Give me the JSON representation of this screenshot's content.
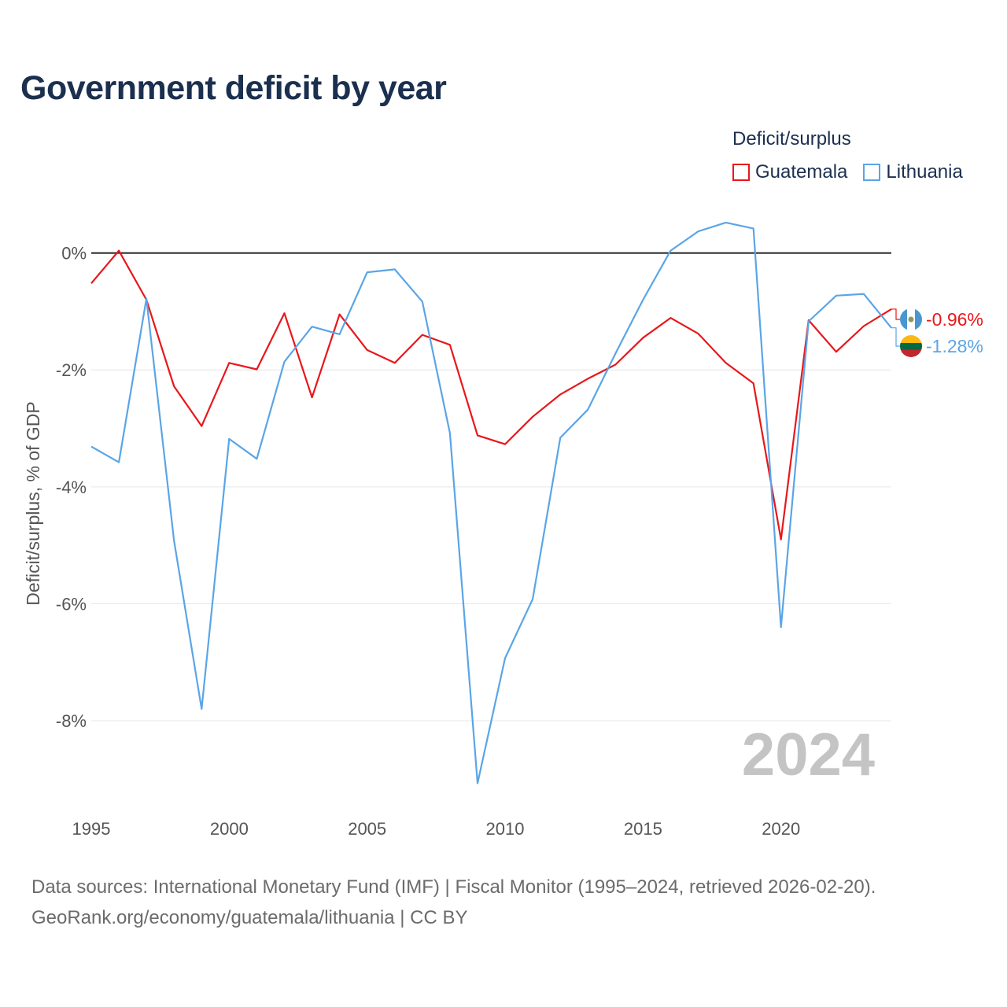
{
  "title": "Government deficit by year",
  "legend": {
    "title": "Deficit/surplus",
    "items": [
      {
        "label": "Guatemala",
        "color": "#e8171b"
      },
      {
        "label": "Lithuania",
        "color": "#5aa5e6"
      }
    ]
  },
  "watermark_year": "2024",
  "footer": {
    "line1": "Data sources: International Monetary Fund (IMF) | Fiscal Monitor (1995–2024, retrieved 2026-02-20).",
    "line2": "GeoRank.org/economy/guatemala/lithuania | CC BY"
  },
  "chart_data": {
    "type": "line",
    "title": "Government deficit by year",
    "xlabel": "",
    "ylabel": "Deficit/surplus, % of GDP",
    "xlim": [
      1995,
      2024
    ],
    "ylim": [
      -9.6,
      0.6
    ],
    "x_ticks": [
      1995,
      2000,
      2005,
      2010,
      2015,
      2020
    ],
    "x_tick_labels": [
      "1995",
      "2000",
      "2005",
      "2010",
      "2015",
      "2020"
    ],
    "y_ticks": [
      0,
      -2,
      -4,
      -6,
      -8
    ],
    "y_tick_labels": [
      "0%",
      "-2%",
      "-4%",
      "-6%",
      "-8%"
    ],
    "x": [
      1995,
      1996,
      1997,
      1998,
      1999,
      2000,
      2001,
      2002,
      2003,
      2004,
      2005,
      2006,
      2007,
      2008,
      2009,
      2010,
      2011,
      2012,
      2013,
      2014,
      2015,
      2016,
      2017,
      2018,
      2019,
      2020,
      2021,
      2022,
      2023,
      2024
    ],
    "series": [
      {
        "name": "Guatemala",
        "color": "#e8171b",
        "values": [
          -0.52,
          0.04,
          -0.8,
          -2.28,
          -2.96,
          -1.88,
          -1.99,
          -1.03,
          -2.47,
          -1.05,
          -1.66,
          -1.88,
          -1.4,
          -1.57,
          -3.12,
          -3.27,
          -2.8,
          -2.42,
          -2.15,
          -1.91,
          -1.45,
          -1.11,
          -1.38,
          -1.88,
          -2.23,
          -4.9,
          -1.15,
          -1.69,
          -1.25,
          -0.96
        ],
        "end_label": "-0.96%"
      },
      {
        "name": "Lithuania",
        "color": "#5aa5e6",
        "values": [
          -3.31,
          -3.58,
          -0.78,
          -4.92,
          -7.8,
          -3.18,
          -3.52,
          -1.86,
          -1.26,
          -1.39,
          -0.33,
          -0.28,
          -0.83,
          -3.08,
          -9.07,
          -6.93,
          -5.92,
          -3.16,
          -2.68,
          -1.72,
          -0.8,
          0.04,
          0.37,
          0.52,
          0.42,
          -6.4,
          -1.17,
          -0.73,
          -0.7,
          -1.28
        ],
        "end_label": "-1.28%"
      }
    ]
  }
}
